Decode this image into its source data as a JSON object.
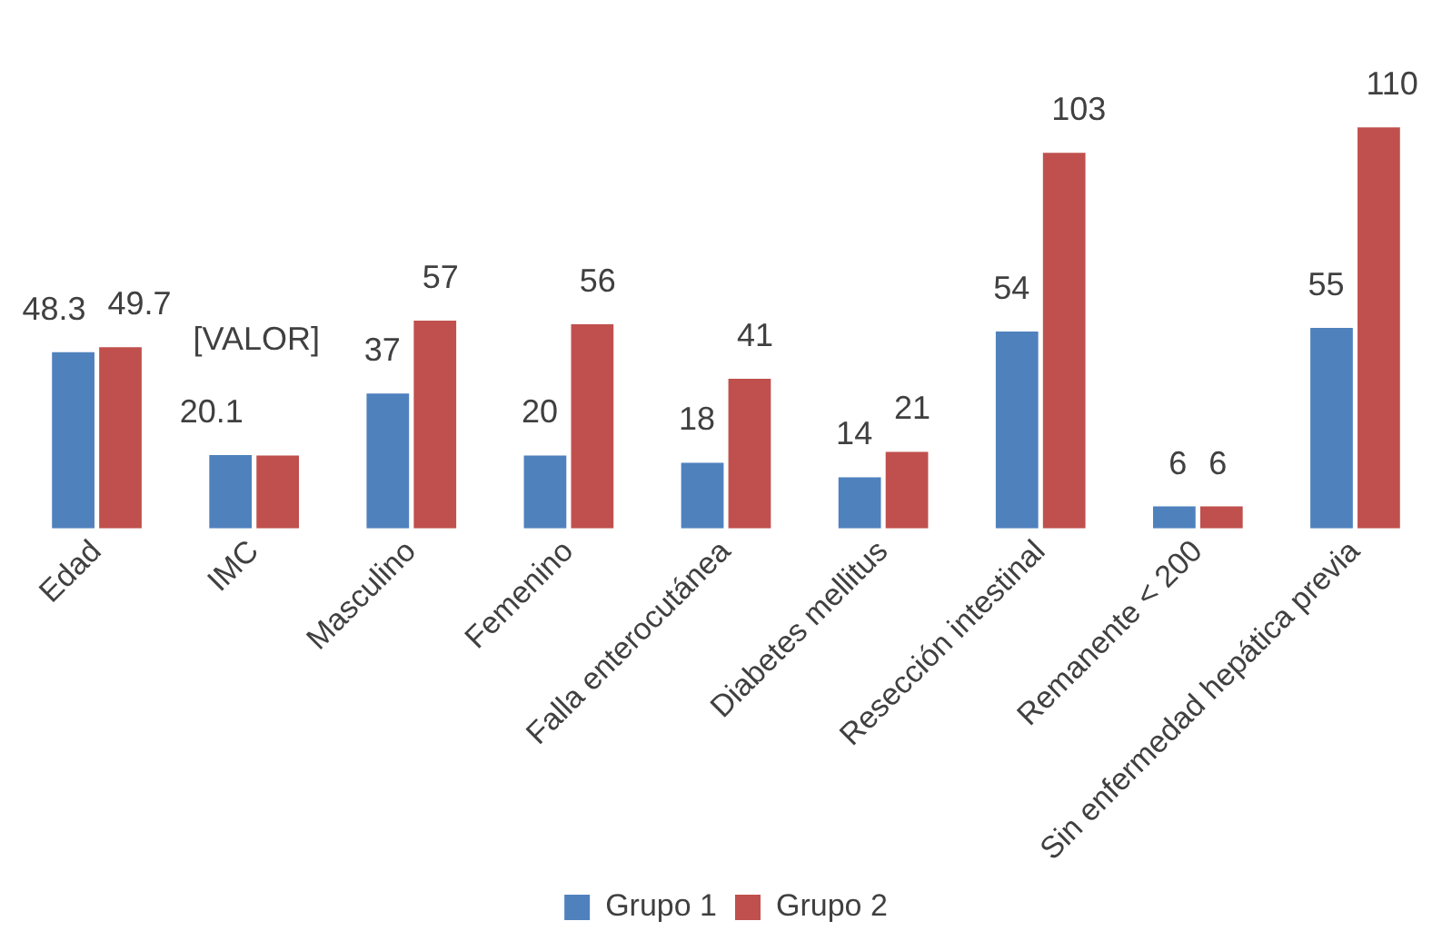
{
  "chart_data": {
    "type": "bar",
    "categories": [
      "Edad",
      "IMC",
      "Masculino",
      "Femenino",
      "Falla enterocutánea",
      "Diabetes mellitus",
      "Resección intestinal",
      "Remanente < 200",
      "Sin enfermedad hepática previa"
    ],
    "series": [
      {
        "name": "Grupo 1",
        "color": "#4f81bd",
        "values": [
          48.3,
          20.1,
          37,
          20,
          18,
          14,
          54,
          6,
          55
        ],
        "value_labels": [
          "48.3",
          "20.1",
          "37",
          "20",
          "18",
          "14",
          "54",
          "6",
          "55"
        ]
      },
      {
        "name": "Grupo 2",
        "color": "#c0504d",
        "values": [
          49.7,
          20,
          57,
          56,
          41,
          21,
          103,
          6,
          110
        ],
        "value_labels": [
          "49.7",
          "[VALOR]",
          "57",
          "56",
          "41",
          "21",
          "103",
          "6",
          "110"
        ]
      }
    ],
    "legend": "bottom",
    "grid": false
  }
}
